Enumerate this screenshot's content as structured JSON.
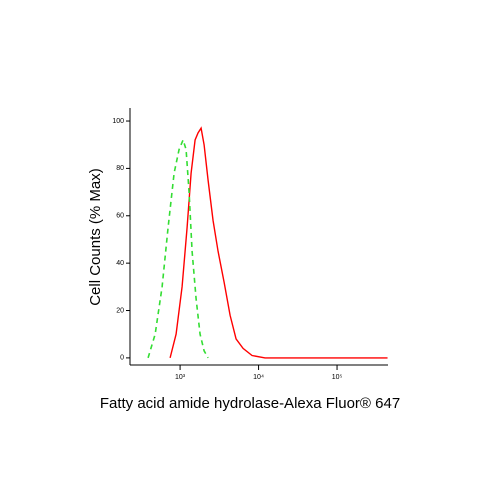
{
  "chart_data": {
    "type": "line",
    "x_label": "Fatty acid amide hydrolase-Alexa Fluor® 647",
    "y_label": "Cell Counts (% Max)",
    "xscale": "log",
    "xlim": [
      230,
      446000
    ],
    "ylim": [
      -3,
      105.5
    ],
    "xticks": [
      {
        "value": 1000,
        "label": "10³"
      },
      {
        "value": 10000,
        "label": "10⁴"
      },
      {
        "value": 100000,
        "label": "10⁵"
      }
    ],
    "yticks": [
      0,
      20,
      40,
      60,
      80,
      100
    ],
    "series": [
      {
        "color": "#ff0000",
        "dash": false,
        "x": [
          746,
          889,
          1060,
          1228,
          1381,
          1553,
          1695,
          1852,
          2022,
          2274,
          2631,
          3048,
          3637,
          4336,
          5168,
          6350,
          8260,
          12100,
          440000
        ],
        "values": [
          0,
          10,
          30,
          55,
          78,
          92,
          95,
          97,
          90,
          75,
          58,
          45,
          32,
          18,
          8,
          4,
          1,
          0,
          0
        ]
      },
      {
        "color": "#33dd33",
        "dash": true,
        "x": [
          391,
          481,
          590,
          703,
          839,
          971,
          1092,
          1192,
          1302,
          1422,
          1599,
          1798,
          2022,
          2274
        ],
        "values": [
          0,
          10,
          30,
          55,
          78,
          88,
          92,
          88,
          70,
          45,
          25,
          10,
          3,
          0
        ]
      }
    ]
  }
}
